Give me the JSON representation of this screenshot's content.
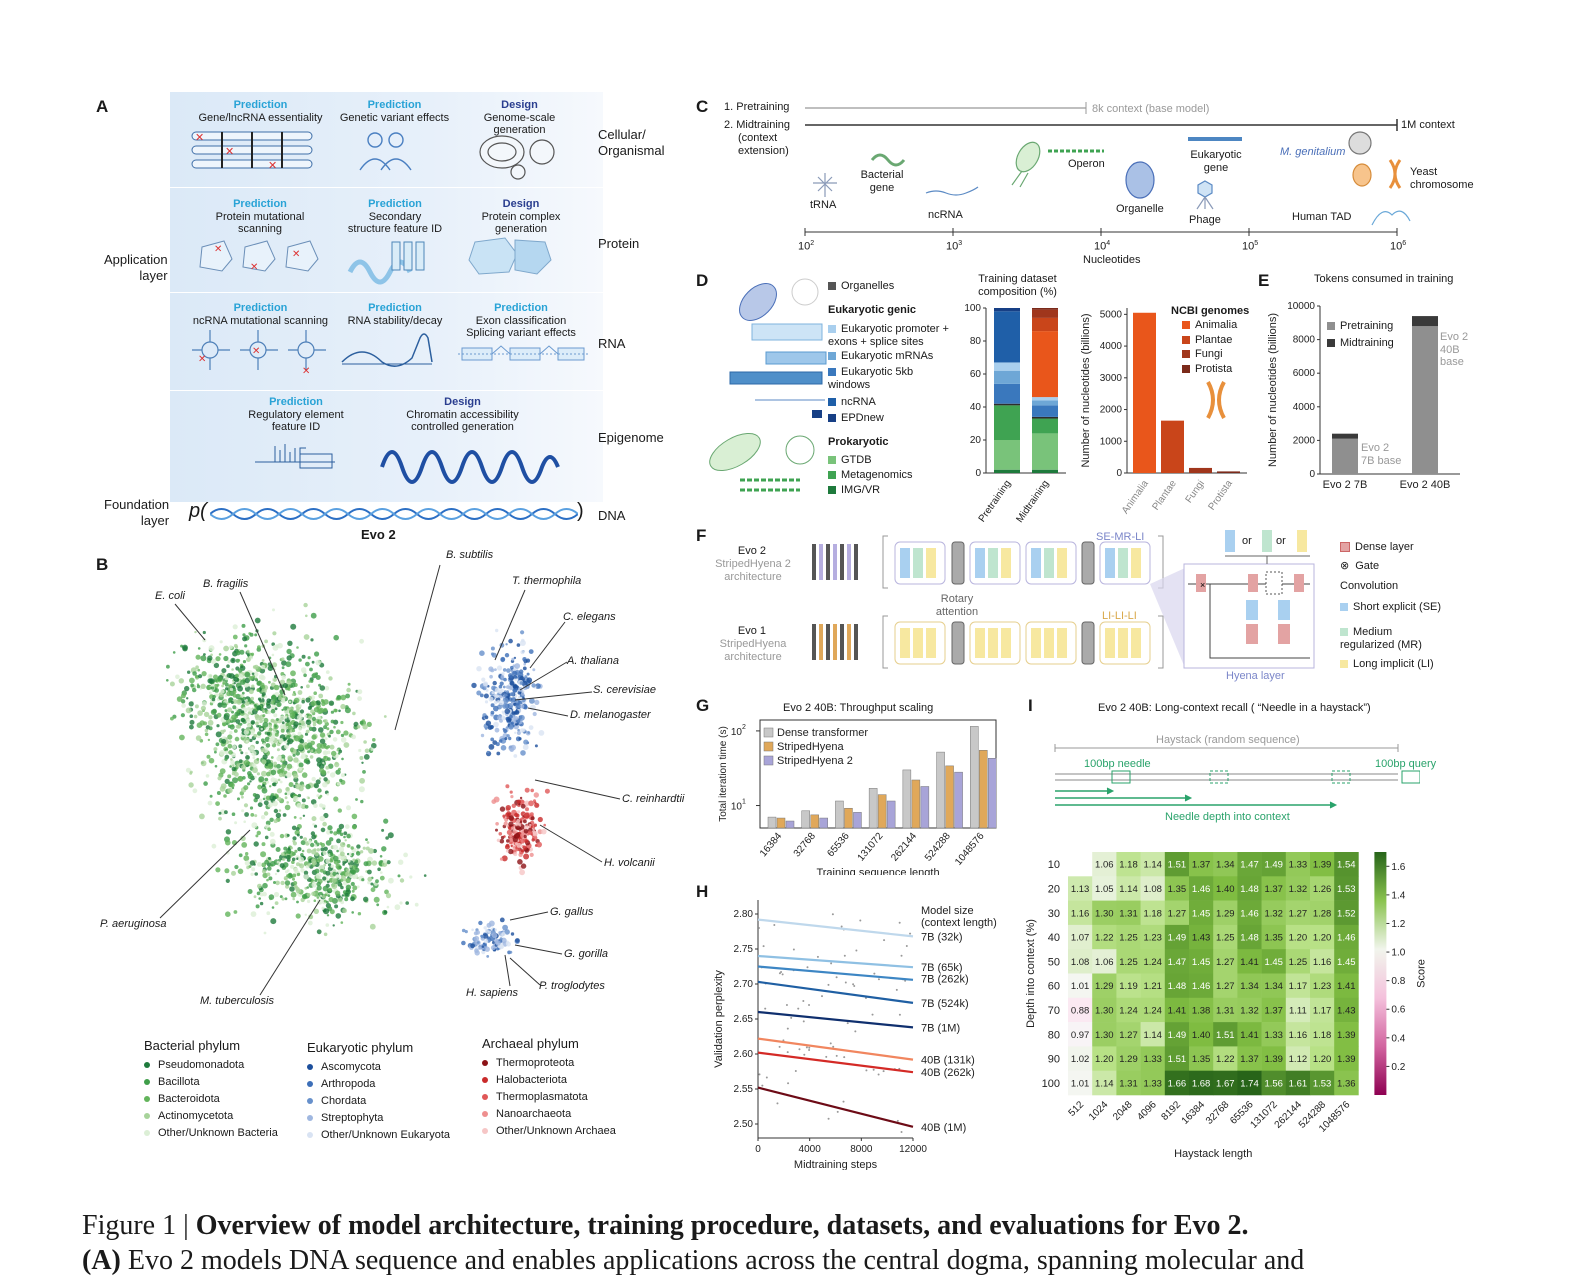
{
  "panelA": {
    "letter": "A",
    "app_layer": "Application\nlayer",
    "foundation_layer": "Foundation\nlayer",
    "p_prefix": "p(",
    "p_suffix": ")",
    "dna": "DNA",
    "model": "Evo 2",
    "rows": [
      {
        "label": "Cellular/\nOrganismal",
        "cells": [
          {
            "kind": "Prediction",
            "text": "Gene/lncRNA essentiality"
          },
          {
            "kind": "Prediction",
            "text": "Genetic variant effects"
          },
          {
            "kind": "Design",
            "text": "Genome-scale\ngeneration"
          }
        ]
      },
      {
        "label": "Protein",
        "cells": [
          {
            "kind": "Prediction",
            "text": "Protein mutational\nscanning"
          },
          {
            "kind": "Prediction",
            "text": "Secondary\nstructure feature ID"
          },
          {
            "kind": "Design",
            "text": "Protein complex\ngeneration"
          }
        ]
      },
      {
        "label": "RNA",
        "cells": [
          {
            "kind": "Prediction",
            "text": "ncRNA mutational scanning"
          },
          {
            "kind": "Prediction",
            "text": "RNA stability/decay"
          },
          {
            "kind": "Prediction",
            "text": "Exon classification\nSplicing variant effects"
          }
        ]
      },
      {
        "label": "Epigenome",
        "cells": [
          {
            "kind": "Prediction",
            "text": "Regulatory element\nfeature ID"
          },
          {
            "kind": "Design",
            "text": "Chromatin accessibility\ncontrolled generation"
          }
        ]
      }
    ]
  },
  "panelB": {
    "letter": "B",
    "labels": [
      "B. subtilis",
      "B. fragilis",
      "E. coli",
      "T. thermophila",
      "C. elegans",
      "A. thaliana",
      "S. cerevisiae",
      "D. melanogaster",
      "C. reinhardtii",
      "H. volcanii",
      "P. aeruginosa",
      "M. tuberculosis",
      "G. gallus",
      "G. gorilla",
      "H. sapiens",
      "P. troglodytes"
    ],
    "legend": [
      {
        "title": "Bacterial phylum",
        "items": [
          {
            "name": "Pseudomonadota",
            "color": "#1e7a3c"
          },
          {
            "name": "Bacillota",
            "color": "#3f9e4a"
          },
          {
            "name": "Bacteroidota",
            "color": "#63b45b"
          },
          {
            "name": "Actinomycetota",
            "color": "#a7d39a"
          },
          {
            "name": "Other/Unknown Bacteria",
            "color": "#dcefd6"
          }
        ]
      },
      {
        "title": "Eukaryotic phylum",
        "items": [
          {
            "name": "Ascomycota",
            "color": "#1c4f9c"
          },
          {
            "name": "Arthropoda",
            "color": "#3d6fb8"
          },
          {
            "name": "Chordata",
            "color": "#6790cb"
          },
          {
            "name": "Streptophyta",
            "color": "#9fb7e0"
          },
          {
            "name": "Other/Unknown Eukaryota",
            "color": "#d9e3f3"
          }
        ]
      },
      {
        "title": "Archaeal phylum",
        "items": [
          {
            "name": "Thermoproteota",
            "color": "#8c1216"
          },
          {
            "name": "Halobacteriota",
            "color": "#c92a2a"
          },
          {
            "name": "Thermoplasmatota",
            "color": "#e05757"
          },
          {
            "name": "Nanoarchaeota",
            "color": "#ee8f8f"
          },
          {
            "name": "Other/Unknown Archaea",
            "color": "#f6c6c6"
          }
        ]
      }
    ]
  },
  "panelC": {
    "letter": "C",
    "stage1": "1. Pretraining",
    "stage2": "2. Midtraining",
    "stage2_sub": "(context\nextension)",
    "ctx1": "8k context (base model)",
    "ctx2": "1M context",
    "xlabel": "Nucleotides",
    "ticks": [
      "10",
      "10",
      "10",
      "10",
      "10"
    ],
    "tick_exp": [
      "2",
      "3",
      "4",
      "5",
      "6"
    ],
    "items": [
      "tRNA",
      "Bacterial\ngene",
      "ncRNA",
      "Operon",
      "Organelle",
      "Eukaryotic\ngene",
      "Phage",
      "M. genitalium",
      "Yeast\nchromosome",
      "Human TAD"
    ]
  },
  "panelD": {
    "letter": "D",
    "legend_organelles": "Organelles",
    "euk_title": "Eukaryotic genic",
    "euk_items": [
      "Eukaryotic promoter +\nexons + splice sites",
      "Eukaryotic mRNAs",
      "Eukaryotic 5kb\nwindows",
      "ncRNA",
      "EPDnew"
    ],
    "pro_title": "Prokaryotic",
    "pro_items": [
      "GTDB",
      "Metagenomics",
      "IMG/VR"
    ],
    "comp_title": "Training dataset\ncomposition (%)",
    "ncbi_title": "NCBI genomes",
    "ncbi_items": [
      "Animalia",
      "Plantae",
      "Fungi",
      "Protista"
    ],
    "ncbi_ylabel": "Number of nucleotides (billions)"
  },
  "panelE": {
    "letter": "E",
    "title": "Tokens consumed in training",
    "ylabel": "Number of nucleotides (billions)",
    "legend": [
      "Pretraining",
      "Midtraining"
    ],
    "ann_7b": "Evo 2\n7B base",
    "ann_40b": "Evo 2\n40B\nbase"
  },
  "panelF": {
    "letter": "F",
    "evo2": "Evo 2",
    "evo2_sub": "StripedHyena 2\narchitecture",
    "evo1": "Evo 1",
    "evo1_sub": "StripedHyena\narchitecture",
    "rotary": "Rotary\nattention",
    "se_mr_li": "SE-MR-LI",
    "li_li_li": "LI-LI-LI",
    "or1": "or",
    "or2": "or",
    "hyena": "Hyena layer",
    "legend": {
      "dense": "Dense layer",
      "gate": "Gate",
      "conv": "Convolution",
      "se": "Short explicit (SE)",
      "mr": "Medium\nregularized (MR)",
      "li": "Long implicit (LI)"
    }
  },
  "panelG": {
    "letter": "G"
  },
  "panelH": {
    "letter": "H",
    "legend_title": "Model size\n(context length)"
  },
  "panelI": {
    "letter": "I",
    "haystack": "Haystack (random sequence)",
    "needle": "100bp needle",
    "query": "100bp query",
    "depth": "Needle depth into context"
  },
  "caption": {
    "prefix": "Figure 1 | ",
    "bold": "Overview of model architecture, training procedure, datasets, and evaluations for Evo 2.",
    "line2_bold": "(A)",
    "line2": " Evo 2 models DNA sequence and enables applications across the central dogma, spanning molecular and"
  },
  "chart_data": [
    {
      "id": "D-composition",
      "type": "bar",
      "stacked": true,
      "categories": [
        "Pretraining",
        "Midtraining"
      ],
      "ylim": [
        0,
        100
      ],
      "yticks": [
        0,
        20,
        40,
        60,
        80,
        100
      ],
      "series": [
        {
          "name": "IMG/VR",
          "color": "#1e7a3c",
          "values": [
            2,
            2
          ]
        },
        {
          "name": "GTDB",
          "color": "#79c37a",
          "values": [
            18,
            22
          ]
        },
        {
          "name": "Metagenomics",
          "color": "#3fa352",
          "values": [
            21,
            9
          ]
        },
        {
          "name": "Organelles",
          "color": "#2d2d2d",
          "values": [
            1,
            1
          ]
        },
        {
          "name": "Eukaryotic 5kb windows",
          "color": "#3a78bd",
          "values": [
            12,
            7
          ]
        },
        {
          "name": "Eukaryotic mRNAs",
          "color": "#6ea7d6",
          "values": [
            8,
            3
          ]
        },
        {
          "name": "Eukaryotic promoter + exons + splice sites",
          "color": "#a9cfee",
          "values": [
            5,
            2
          ]
        },
        {
          "name": "ncRNA",
          "color": "#1f5fa8",
          "values": [
            31,
            0
          ]
        },
        {
          "name": "EPDnew",
          "color": "#173f85",
          "values": [
            2,
            0
          ]
        },
        {
          "name": "Animalia",
          "color": "#e9561b",
          "values": [
            0,
            40
          ]
        },
        {
          "name": "Plantae",
          "color": "#c9451a",
          "values": [
            0,
            8
          ]
        },
        {
          "name": "Fungi",
          "color": "#a0361c",
          "values": [
            0,
            5
          ]
        },
        {
          "name": "Protista",
          "color": "#7b2a1a",
          "values": [
            0,
            1
          ]
        }
      ]
    },
    {
      "id": "D-ncbi",
      "type": "bar",
      "categories": [
        "Animalia",
        "Plantae",
        "Fungi",
        "Protista"
      ],
      "values": [
        5050,
        1650,
        160,
        50
      ],
      "colors": [
        "#e9561b",
        "#c9451a",
        "#a0361c",
        "#7b2a1a"
      ],
      "ylim": [
        0,
        5200
      ],
      "yticks": [
        0,
        1000,
        2000,
        3000,
        4000,
        5000
      ],
      "ylabel": "Number of nucleotides (billions)"
    },
    {
      "id": "E-tokens",
      "type": "bar",
      "stacked": true,
      "title": "Tokens consumed in training",
      "categories": [
        "Evo 2 7B",
        "Evo 2 40B"
      ],
      "series": [
        {
          "name": "Pretraining",
          "color": "#8f8f8f",
          "values": [
            2100,
            8800
          ]
        },
        {
          "name": "Midtraining",
          "color": "#3a3a3a",
          "values": [
            300,
            600
          ]
        }
      ],
      "ylim": [
        0,
        10000
      ],
      "yticks": [
        0,
        2000,
        4000,
        6000,
        8000,
        10000
      ],
      "ylabel": "Number of nucleotides (billions)"
    },
    {
      "id": "G-throughput",
      "type": "bar",
      "title": "Evo 2 40B: Throughput scaling",
      "xlabel": "Training sequence length",
      "ylabel": "Total iteration time (s)",
      "yscale": "log",
      "ylim": [
        5,
        140
      ],
      "categories": [
        "16384",
        "32768",
        "65536",
        "131072",
        "262144",
        "524288",
        "1048576"
      ],
      "series": [
        {
          "name": "Dense transformer",
          "color": "#c8c8c8",
          "values": [
            7.0,
            8.5,
            11.5,
            17,
            30,
            52,
            115
          ]
        },
        {
          "name": "StripedHyena",
          "color": "#e0a85a",
          "values": [
            6.8,
            7.5,
            9.2,
            14,
            22,
            34,
            55
          ]
        },
        {
          "name": "StripedHyena 2",
          "color": "#a8a4d8",
          "values": [
            6.2,
            6.8,
            8.1,
            11.5,
            18,
            28,
            43
          ]
        }
      ]
    },
    {
      "id": "H-perplexity",
      "type": "line",
      "xlabel": "Midtraining steps",
      "ylabel": "Validation perplexity",
      "xlim": [
        0,
        12000
      ],
      "ylim": [
        2.48,
        2.82
      ],
      "xticks": [
        0,
        4000,
        8000,
        12000
      ],
      "yticks": [
        2.5,
        2.55,
        2.6,
        2.65,
        2.7,
        2.75,
        2.8
      ],
      "legend_title": "Model size\n(context length)",
      "series": [
        {
          "name": "7B (32k)",
          "color": "#bfd8ec",
          "x": [
            0,
            12000
          ],
          "y": [
            2.792,
            2.768
          ]
        },
        {
          "name": "7B (65k)",
          "color": "#8fc0e3",
          "x": [
            0,
            12000
          ],
          "y": [
            2.74,
            2.724
          ]
        },
        {
          "name": "7B (262k)",
          "color": "#3d86c4",
          "x": [
            0,
            12000
          ],
          "y": [
            2.725,
            2.706
          ]
        },
        {
          "name": "7B (524k)",
          "color": "#1f5fa3",
          "x": [
            0,
            12000
          ],
          "y": [
            2.703,
            2.673
          ]
        },
        {
          "name": "7B (1M)",
          "color": "#0f2f6e",
          "x": [
            0,
            12000
          ],
          "y": [
            2.66,
            2.638
          ]
        },
        {
          "name": "40B (131k)",
          "color": "#f1865f",
          "x": [
            0,
            12000
          ],
          "y": [
            2.622,
            2.592
          ]
        },
        {
          "name": "40B (262k)",
          "color": "#d42a26",
          "x": [
            0,
            12000
          ],
          "y": [
            2.602,
            2.574
          ]
        },
        {
          "name": "40B (1M)",
          "color": "#6d0b16",
          "x": [
            0,
            12000
          ],
          "y": [
            2.552,
            2.496
          ]
        }
      ]
    },
    {
      "id": "I-needle",
      "type": "heatmap",
      "title": "Evo 2 40B: Long-context recall ( “Needle in a haystack”)",
      "xlabel": "Haystack length",
      "ylabel": "Depth into context (%)",
      "colorbar_label": "Score",
      "colorbar_ticks": [
        0.2,
        0.4,
        0.6,
        0.8,
        1.0,
        1.2,
        1.4,
        1.6
      ],
      "x": [
        "512",
        "1024",
        "2048",
        "4096",
        "8192",
        "16384",
        "32768",
        "65536",
        "131072",
        "262144",
        "524288",
        "1048576"
      ],
      "y": [
        "10",
        "20",
        "30",
        "40",
        "50",
        "60",
        "70",
        "80",
        "90",
        "100"
      ],
      "values": [
        [
          null,
          1.06,
          1.18,
          1.14,
          1.51,
          1.37,
          1.34,
          1.47,
          1.49,
          1.33,
          1.39,
          1.54
        ],
        [
          1.13,
          1.05,
          1.14,
          1.08,
          1.35,
          1.46,
          1.4,
          1.48,
          1.37,
          1.32,
          1.26,
          1.53
        ],
        [
          1.16,
          1.3,
          1.31,
          1.18,
          1.27,
          1.45,
          1.29,
          1.46,
          1.32,
          1.27,
          1.28,
          1.52
        ],
        [
          1.07,
          1.22,
          1.25,
          1.23,
          1.49,
          1.43,
          1.25,
          1.48,
          1.35,
          1.2,
          1.2,
          1.46
        ],
        [
          1.08,
          1.06,
          1.25,
          1.24,
          1.47,
          1.45,
          1.27,
          1.41,
          1.45,
          1.25,
          1.16,
          1.45
        ],
        [
          1.01,
          1.29,
          1.19,
          1.21,
          1.48,
          1.46,
          1.27,
          1.34,
          1.34,
          1.17,
          1.23,
          1.41
        ],
        [
          0.88,
          1.3,
          1.24,
          1.24,
          1.41,
          1.38,
          1.31,
          1.32,
          1.37,
          1.11,
          1.17,
          1.43
        ],
        [
          0.97,
          1.3,
          1.27,
          1.14,
          1.49,
          1.4,
          1.51,
          1.41,
          1.33,
          1.16,
          1.18,
          1.39
        ],
        [
          1.02,
          1.2,
          1.29,
          1.33,
          1.51,
          1.35,
          1.22,
          1.37,
          1.39,
          1.12,
          1.2,
          1.39
        ],
        [
          1.01,
          1.14,
          1.31,
          1.33,
          1.66,
          1.68,
          1.67,
          1.74,
          1.56,
          1.61,
          1.53,
          1.36
        ]
      ]
    }
  ]
}
